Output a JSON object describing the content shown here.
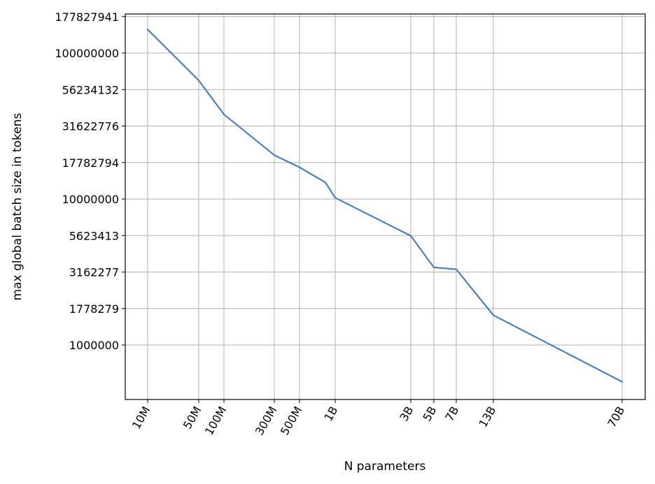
{
  "chart_data": {
    "type": "line",
    "xlabel": "N parameters",
    "ylabel": "max global batch size in tokens",
    "y_scale": "log",
    "grid": true,
    "x_tick_labels": [
      "10M",
      "50M",
      "100M",
      "300M",
      "500M",
      "1B",
      "3B",
      "5B",
      "7B",
      "13B",
      "70B"
    ],
    "y_tick_labels": [
      "177827941",
      "100000000",
      "56234132",
      "31622776",
      "17782794",
      "10000000",
      "5623413",
      "3162277",
      "1778279",
      "1000000"
    ],
    "x": [
      "10M",
      "50M",
      "100M",
      "300M",
      "500M",
      "800M",
      "1B",
      "3B",
      "5B",
      "7B",
      "13B",
      "70B"
    ],
    "series": [
      {
        "values": [
          145000000,
          65000000,
          38000000,
          20000000,
          16500000,
          13000000,
          10200000,
          5600000,
          3400000,
          3300000,
          1600000,
          560000
        ],
        "color": "#4a7fb8"
      }
    ]
  }
}
